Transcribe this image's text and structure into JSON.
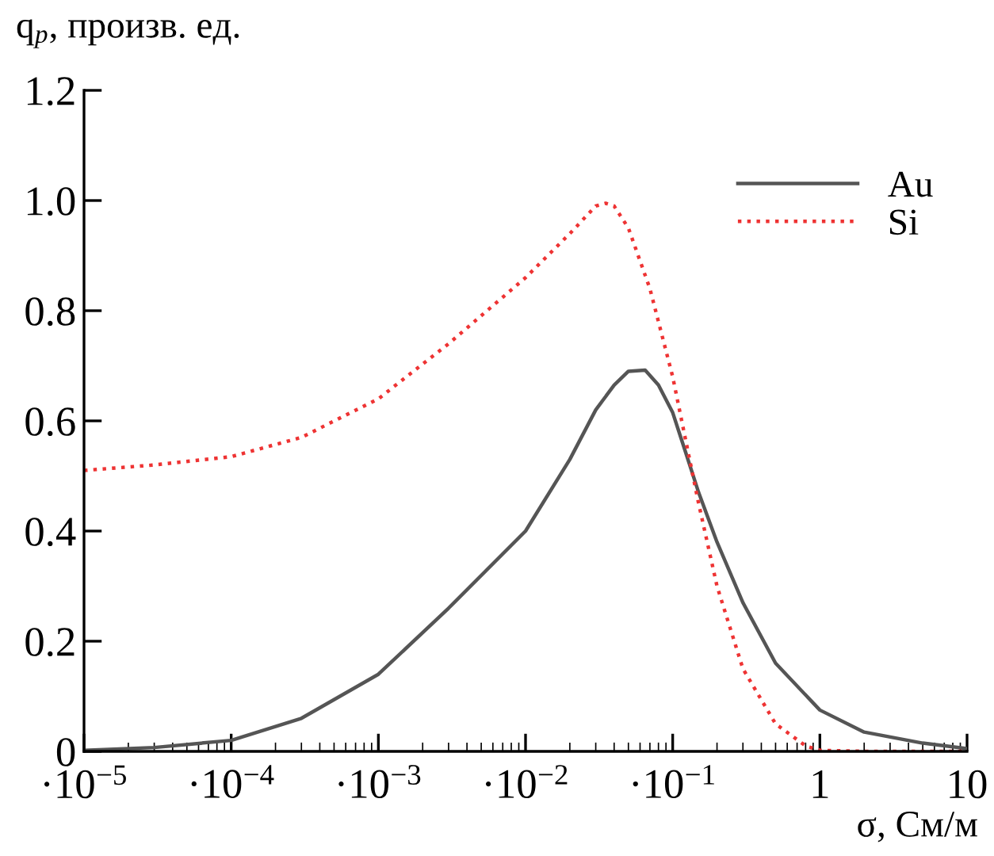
{
  "chart_data": {
    "type": "line",
    "ylabel": "q$_{p}$, произв. ед.",
    "xlabel": "σ, См/м",
    "log": "x",
    "xlim": [
      1e-05,
      10
    ],
    "ylim": [
      0,
      1.2
    ],
    "xticks": [
      {
        "value": 1e-05,
        "label": "·10$^{−5}$"
      },
      {
        "value": 0.0001,
        "label": "·10$^{−4}$"
      },
      {
        "value": 0.001,
        "label": "·10$^{−3}$"
      },
      {
        "value": 0.01,
        "label": "·10$^{−2}$"
      },
      {
        "value": 0.1,
        "label": "·10$^{−1}$"
      },
      1,
      10
    ],
    "yticks": [
      0,
      0.2,
      0.4,
      0.6,
      0.8,
      {
        "value": 1.0,
        "label": "1.0"
      },
      1.2
    ],
    "legend": "top right",
    "grid": false,
    "series": [
      {
        "name": "Au",
        "color": "#555555",
        "line_style": "solid",
        "x": [
          1e-05,
          3e-05,
          0.0001,
          0.0003,
          0.001,
          0.003,
          0.01,
          0.02,
          0.03,
          0.04,
          0.05,
          0.065,
          0.08,
          0.1,
          0.12,
          0.15,
          0.2,
          0.3,
          0.5,
          1,
          2,
          5,
          10
        ],
        "values": [
          0.002,
          0.007,
          0.02,
          0.06,
          0.14,
          0.26,
          0.4,
          0.53,
          0.62,
          0.665,
          0.69,
          0.692,
          0.665,
          0.615,
          0.55,
          0.47,
          0.38,
          0.27,
          0.16,
          0.075,
          0.035,
          0.015,
          0.005
        ]
      },
      {
        "name": "Si",
        "color": "#ee3333",
        "line_style": "dotted",
        "x": [
          1e-05,
          3e-05,
          0.0001,
          0.0003,
          0.001,
          0.003,
          0.01,
          0.02,
          0.03,
          0.035,
          0.04,
          0.05,
          0.07,
          0.1,
          0.15,
          0.2,
          0.3,
          0.5,
          0.8,
          1,
          2,
          10
        ],
        "values": [
          0.51,
          0.52,
          0.535,
          0.57,
          0.64,
          0.74,
          0.86,
          0.94,
          0.99,
          0.995,
          0.99,
          0.95,
          0.84,
          0.68,
          0.45,
          0.3,
          0.15,
          0.05,
          0.01,
          0.002,
          0,
          0
        ]
      }
    ]
  }
}
